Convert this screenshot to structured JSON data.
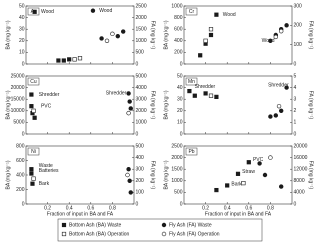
{
  "chart_data": [
    {
      "type": "scatter",
      "title": "As",
      "ylabel": "BA (mg kg⁻¹)",
      "y2label": "FA (mg kg⁻¹)",
      "xlim": [
        0,
        1
      ],
      "xticks": [
        0.2,
        0.4,
        0.6,
        0.8
      ],
      "xticklabels": false,
      "ylim": [
        0,
        50
      ],
      "yticks": [
        0,
        10,
        20,
        30,
        40,
        50
      ],
      "y2lim": [
        0,
        2500
      ],
      "y2ticks": [
        0,
        500,
        1000,
        1500,
        2000,
        2500
      ],
      "series": [
        {
          "color": "#1a1a1a",
          "marker": "square",
          "filled": true,
          "axis": "y",
          "x": [
            0.08,
            0.3,
            0.35,
            0.4
          ],
          "values": [
            45,
            3,
            3,
            4
          ]
        },
        {
          "color": "#1a1a1a",
          "marker": "circle",
          "filled": true,
          "axis": "y2",
          "x": [
            0.62,
            0.7,
            0.85,
            0.9
          ],
          "values": [
            2300,
            1100,
            1200,
            1400
          ]
        },
        {
          "color": "#1a1a1a",
          "marker": "square",
          "filled": false,
          "axis": "y",
          "x": [
            0.45,
            0.5
          ],
          "values": [
            4,
            5
          ]
        },
        {
          "color": "#1a1a1a",
          "marker": "circle",
          "filled": false,
          "axis": "y2",
          "x": [
            0.75,
            0.8
          ],
          "values": [
            1000,
            1300
          ]
        }
      ],
      "annotations": [
        {
          "text": "Wood",
          "x": 0.12,
          "y": 45,
          "axis": "y"
        },
        {
          "text": "Wood",
          "x": 0.66,
          "y": 2300,
          "axis": "y2"
        }
      ]
    },
    {
      "type": "scatter",
      "title": "Cr",
      "ylabel": "BA (mg kg⁻¹)",
      "y2label": "FA (mg kg⁻¹)",
      "xlim": [
        0,
        1
      ],
      "xticks": [
        0.2,
        0.4,
        0.6,
        0.8
      ],
      "xticklabels": false,
      "ylim": [
        0,
        1000
      ],
      "yticks": [
        0,
        200,
        400,
        600,
        800,
        1000
      ],
      "y2lim": [
        0,
        300
      ],
      "y2ticks": [
        0,
        100,
        200,
        300
      ],
      "series": [
        {
          "color": "#1a1a1a",
          "marker": "square",
          "filled": true,
          "axis": "y",
          "x": [
            0.15,
            0.2,
            0.25,
            0.3
          ],
          "values": [
            150,
            350,
            500,
            850
          ]
        },
        {
          "color": "#1a1a1a",
          "marker": "circle",
          "filled": true,
          "axis": "y2",
          "x": [
            0.8,
            0.85,
            0.9,
            0.95
          ],
          "values": [
            120,
            150,
            180,
            200
          ]
        },
        {
          "color": "#1a1a1a",
          "marker": "square",
          "filled": false,
          "axis": "y",
          "x": [
            0.2,
            0.25
          ],
          "values": [
            400,
            600
          ]
        },
        {
          "color": "#1a1a1a",
          "marker": "circle",
          "filled": false,
          "axis": "y2",
          "x": [
            0.85,
            0.9
          ],
          "values": [
            140,
            170
          ]
        }
      ],
      "annotations": [
        {
          "text": "Wood",
          "x": 0.34,
          "y": 850,
          "axis": "y"
        },
        {
          "text": "Wood",
          "x": 0.7,
          "y": 120,
          "axis": "y2"
        }
      ]
    },
    {
      "type": "scatter",
      "title": "Cu",
      "ylabel": "BA (mg kg⁻¹)",
      "y2label": "FA (mg kg⁻¹)",
      "xlim": [
        0,
        1
      ],
      "xticks": [
        0.2,
        0.4,
        0.6,
        0.8
      ],
      "xticklabels": false,
      "ylim": [
        0,
        25000
      ],
      "yticks": [
        0,
        5000,
        10000,
        15000,
        20000,
        25000
      ],
      "y2lim": [
        0,
        5000
      ],
      "y2ticks": [
        0,
        1000,
        2000,
        3000,
        4000,
        5000
      ],
      "series": [
        {
          "color": "#1a1a1a",
          "marker": "square",
          "filled": true,
          "axis": "y",
          "x": [
            0.05,
            0.05,
            0.06,
            0.08
          ],
          "values": [
            17000,
            12000,
            9000,
            7000
          ]
        },
        {
          "color": "#1a1a1a",
          "marker": "circle",
          "filled": true,
          "axis": "y2",
          "x": [
            0.95,
            0.96,
            0.97
          ],
          "values": [
            3500,
            2800,
            2200
          ]
        },
        {
          "color": "#1a1a1a",
          "marker": "square",
          "filled": false,
          "axis": "y",
          "x": [
            0.07
          ],
          "values": [
            10000
          ]
        },
        {
          "color": "#1a1a1a",
          "marker": "circle",
          "filled": false,
          "axis": "y2",
          "x": [
            0.95
          ],
          "values": [
            1800
          ]
        }
      ],
      "annotations": [
        {
          "text": "Shredder",
          "x": 0.1,
          "y": 17000,
          "axis": "y"
        },
        {
          "text": "PVC",
          "x": 0.12,
          "y": 12000,
          "axis": "y"
        },
        {
          "text": "Shredder",
          "x": 0.72,
          "y": 3500,
          "axis": "y2"
        }
      ]
    },
    {
      "type": "scatter",
      "title": "Mn",
      "ylabel": "BA (mg kg⁻¹)",
      "y2label": "FA (mg kg⁻¹)",
      "xlim": [
        0,
        1
      ],
      "xticks": [
        0.2,
        0.4,
        0.6,
        0.8
      ],
      "xticklabels": false,
      "ylim": [
        0,
        50
      ],
      "yticks": [
        0,
        10,
        20,
        30,
        40,
        50
      ],
      "y2lim": [
        0,
        5
      ],
      "y2ticks": [
        0,
        1,
        2,
        3,
        4,
        5
      ],
      "series": [
        {
          "color": "#1a1a1a",
          "marker": "square",
          "filled": true,
          "axis": "y",
          "x": [
            0.05,
            0.1,
            0.2,
            0.3
          ],
          "values": [
            37,
            33,
            35,
            32
          ]
        },
        {
          "color": "#1a1a1a",
          "marker": "circle",
          "filled": true,
          "axis": "y2",
          "x": [
            0.8,
            0.85,
            0.9,
            0.95
          ],
          "values": [
            1.5,
            1.6,
            2,
            4
          ]
        },
        {
          "color": "#1a1a1a",
          "marker": "square",
          "filled": false,
          "axis": "y",
          "x": [
            0.25
          ],
          "values": [
            33
          ]
        },
        {
          "color": "#1a1a1a",
          "marker": "circle",
          "filled": false,
          "axis": "y2",
          "x": [
            0.88
          ],
          "values": [
            2.4
          ]
        }
      ],
      "annotations": [
        {
          "text": "Shredder",
          "x": 0.08,
          "y": 41,
          "axis": "y"
        },
        {
          "text": "Shredder",
          "x": 0.76,
          "y": 4.2,
          "axis": "y2"
        }
      ]
    },
    {
      "type": "scatter",
      "title": "Ni",
      "ylabel": "BA (mg kg⁻¹)",
      "y2label": "FA (mg kg⁻¹)",
      "xlabel": "Fraction of input in BA and FA",
      "xlim": [
        0,
        1
      ],
      "xticks": [
        0.2,
        0.4,
        0.6,
        0.8
      ],
      "xticklabels": true,
      "ylim": [
        0,
        800
      ],
      "yticks": [
        0,
        200,
        400,
        600,
        800
      ],
      "y2lim": [
        0,
        500
      ],
      "y2ticks": [
        0,
        100,
        200,
        300,
        400,
        500
      ],
      "series": [
        {
          "color": "#1a1a1a",
          "marker": "square",
          "filled": true,
          "axis": "y",
          "x": [
            0.05,
            0.05,
            0.06
          ],
          "values": [
            480,
            420,
            280
          ]
        },
        {
          "color": "#1a1a1a",
          "marker": "circle",
          "filled": true,
          "axis": "y2",
          "x": [
            0.95,
            0.96,
            0.97
          ],
          "values": [
            300,
            200,
            100
          ]
        },
        {
          "color": "#1a1a1a",
          "marker": "square",
          "filled": false,
          "axis": "y",
          "x": [
            0.07
          ],
          "values": [
            350
          ]
        },
        {
          "color": "#1a1a1a",
          "marker": "circle",
          "filled": false,
          "axis": "y2",
          "x": [
            0.94
          ],
          "values": [
            250
          ]
        }
      ],
      "annotations": [
        {
          "text": "Waste",
          "x": 0.1,
          "y": 530,
          "axis": "y"
        },
        {
          "text": "Batteries",
          "x": 0.1,
          "y": 460,
          "axis": "y"
        },
        {
          "text": "Bark",
          "x": 0.1,
          "y": 280,
          "axis": "y"
        }
      ]
    },
    {
      "type": "scatter",
      "title": "Pb",
      "ylabel": "BA (mg kg⁻¹)",
      "y2label": "FA (mg kg⁻¹)",
      "xlabel": "Fraction of input in BA and FA",
      "xlim": [
        0,
        1
      ],
      "xticks": [
        0.2,
        0.4,
        0.6,
        0.8
      ],
      "xticklabels": true,
      "ylim": [
        0,
        2500
      ],
      "yticks": [
        0,
        500,
        1000,
        1500,
        2000,
        2500
      ],
      "y2lim": [
        0,
        20000
      ],
      "y2ticks": [
        0,
        4000,
        8000,
        12000,
        16000,
        20000
      ],
      "series": [
        {
          "color": "#1a1a1a",
          "marker": "square",
          "filled": true,
          "axis": "y",
          "x": [
            0.3,
            0.4,
            0.5,
            0.6
          ],
          "values": [
            600,
            800,
            1300,
            1800
          ]
        },
        {
          "color": "#1a1a1a",
          "marker": "circle",
          "filled": true,
          "axis": "y2",
          "x": [
            0.7,
            0.75,
            0.9
          ],
          "values": [
            14000,
            10000,
            6000
          ]
        },
        {
          "color": "#1a1a1a",
          "marker": "square",
          "filled": false,
          "axis": "y",
          "x": [
            0.55
          ],
          "values": [
            900
          ]
        },
        {
          "color": "#1a1a1a",
          "marker": "circle",
          "filled": false,
          "axis": "y2",
          "x": [
            0.8
          ],
          "values": [
            16000
          ]
        }
      ],
      "annotations": [
        {
          "text": "PVC",
          "x": 0.62,
          "y": 1900,
          "axis": "y"
        },
        {
          "text": "Straw",
          "x": 0.52,
          "y": 1400,
          "axis": "y"
        },
        {
          "text": "Bark",
          "x": 0.42,
          "y": 850,
          "axis": "y"
        }
      ]
    }
  ],
  "legend": [
    "Bottom Ash (BA) Waste",
    "Fly Ash (FA) Waste",
    "Bottom Ash (BA) Operation",
    "Fly Ash (FA) Operation"
  ]
}
